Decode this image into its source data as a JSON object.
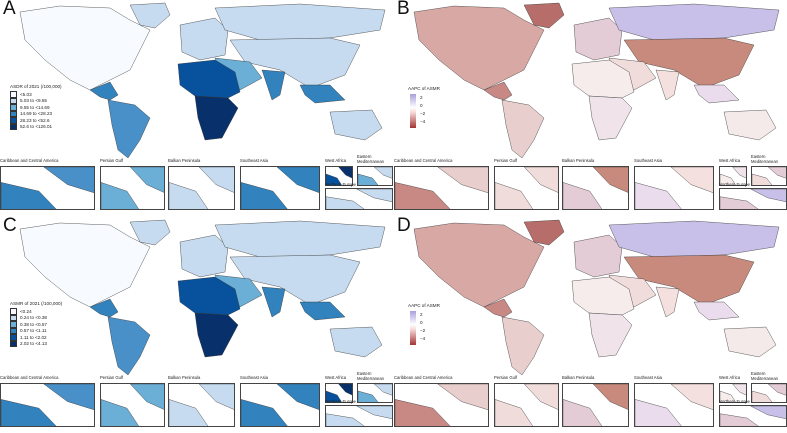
{
  "panels": [
    {
      "letter": "A",
      "type": "classes",
      "legend_title": "ASDR of 2021 (/100,000)",
      "classes": [
        {
          "label": "<5.03",
          "color": "#f7fbff"
        },
        {
          "label": "5.03 to <9.55",
          "color": "#c6dbef"
        },
        {
          "label": "9.55 to <14.69",
          "color": "#6baed6"
        },
        {
          "label": "14.69 to <28.23",
          "color": "#3182bd"
        },
        {
          "label": "28.23 to <52.6",
          "color": "#08519c"
        },
        {
          "label": "52.6 to <126.01",
          "color": "#08306b"
        }
      ],
      "region_colors": {
        "na": "#f7fbff",
        "greenland": "#c6dbef",
        "ca": "#3182bd",
        "sa": "#4a90c8",
        "eu": "#c6dbef",
        "russia": "#c6dbef",
        "asia": "#c6dbef",
        "me": "#6baed6",
        "africa": "#08519c",
        "safrica": "#08306b",
        "india": "#3182bd",
        "sea": "#3182bd",
        "aus": "#c6dbef"
      }
    },
    {
      "letter": "B",
      "type": "gradient",
      "legend_title": "AAPC of ASMR",
      "ticks": [
        "2",
        "0",
        "−2",
        "−4"
      ],
      "region_colors": {
        "na": "#d8a8a4",
        "greenland": "#b76e6a",
        "ca": "#c88884",
        "sa": "#e8cfcd",
        "eu": "#e4ccd6",
        "russia": "#c8c0e8",
        "asia": "#c78a7c",
        "me": "#f0dcda",
        "africa": "#f6ecec",
        "safrica": "#f0e4ea",
        "india": "#f4e0de",
        "sea": "#eadcec",
        "aus": "#f4eaea"
      }
    },
    {
      "letter": "C",
      "type": "classes",
      "legend_title": "ASMR of 2021 (/100,000)",
      "classes": [
        {
          "label": "<0.24",
          "color": "#f7fbff"
        },
        {
          "label": "0.24 to <0.38",
          "color": "#c6dbef"
        },
        {
          "label": "0.38 to <0.57",
          "color": "#6baed6"
        },
        {
          "label": "0.57 to <1.11",
          "color": "#3182bd"
        },
        {
          "label": "1.11 to <2.02",
          "color": "#08519c"
        },
        {
          "label": "2.02 to <4.13",
          "color": "#08306b"
        }
      ],
      "region_colors": {
        "na": "#f7fbff",
        "greenland": "#c6dbef",
        "ca": "#3182bd",
        "sa": "#4a90c8",
        "eu": "#c6dbef",
        "russia": "#c6dbef",
        "asia": "#c6dbef",
        "me": "#6baed6",
        "africa": "#08519c",
        "safrica": "#08306b",
        "india": "#3182bd",
        "sea": "#3182bd",
        "aus": "#c6dbef"
      }
    },
    {
      "letter": "D",
      "type": "gradient",
      "legend_title": "AAPC of ASMR",
      "ticks": [
        "2",
        "0",
        "−2",
        "−4"
      ],
      "region_colors": {
        "na": "#d8a8a4",
        "greenland": "#b76e6a",
        "ca": "#c88884",
        "sa": "#e8cfcd",
        "eu": "#e4ccd6",
        "russia": "#c8c0e8",
        "asia": "#c78a7c",
        "me": "#f0dcda",
        "africa": "#f6ecec",
        "safrica": "#f0e4ea",
        "india": "#f4e0de",
        "sea": "#eadcec",
        "aus": "#f4eaea"
      }
    }
  ],
  "insets": [
    "Caribbean and Central America",
    "Persian Gulf",
    "Balkan Peninsula",
    "Southeast Asia",
    "West Africa",
    "Eastern Mediterranean",
    "Northern Europe"
  ]
}
